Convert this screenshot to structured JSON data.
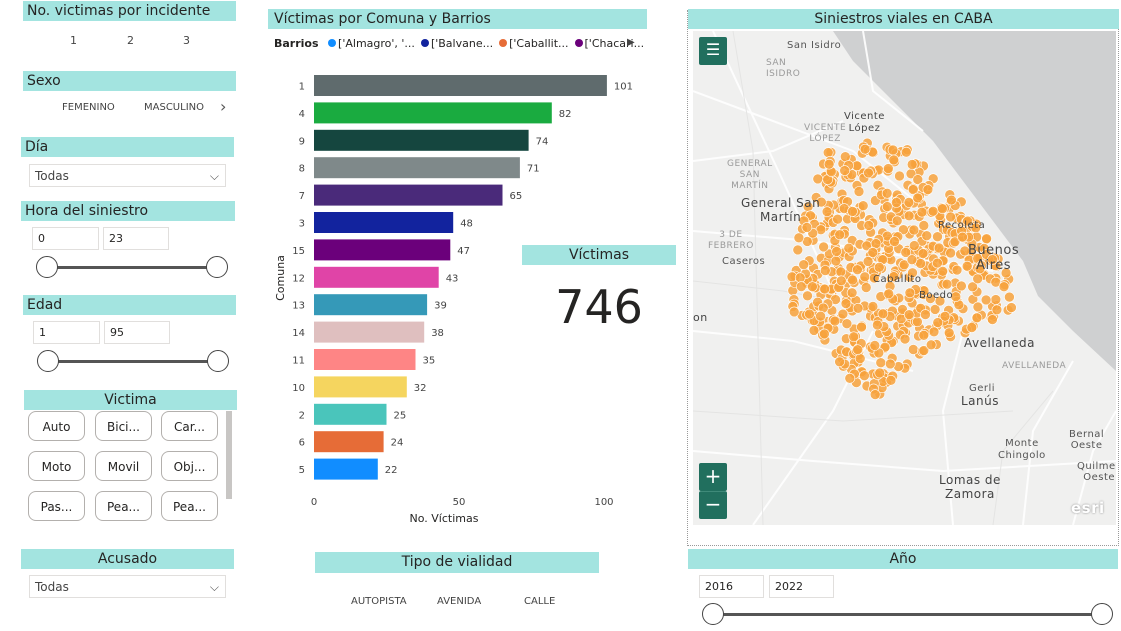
{
  "victims_per_incident": {
    "title": "No. victimas por incidente",
    "options": [
      "1",
      "2",
      "3"
    ]
  },
  "sexo": {
    "title": "Sexo",
    "options": [
      "FEMENINO",
      "MASCULINO"
    ]
  },
  "dia": {
    "title": "Día",
    "value": "Todas"
  },
  "hora": {
    "title": "Hora del siniestro",
    "min": "0",
    "max": "23"
  },
  "edad": {
    "title": "Edad",
    "min": "1",
    "max": "95"
  },
  "victima": {
    "title": "Victima",
    "buttons": [
      "Auto",
      "Bici...",
      "Car...",
      "Moto",
      "Movil",
      "Obj...",
      "Pas...",
      "Pea...",
      "Pea..."
    ]
  },
  "acusado": {
    "title": "Acusado",
    "value": "Todas"
  },
  "tipo_vialidad": {
    "title": "Tipo de vialidad",
    "options": [
      "AUTOPISTA",
      "AVENIDA",
      "CALLE"
    ]
  },
  "kpi": {
    "title": "Víctimas",
    "value": "746"
  },
  "map": {
    "title": "Siniestros viales en CABA",
    "labels": {
      "san_isidro": "San Isidro",
      "san_isidro_caps": "SAN\nISIDRO",
      "vicente_lopez": "Vicente\nLópez",
      "vicente_lopez_caps": "VICENTE\nLÓPEZ",
      "general_san_martin_caps": "GENERAL\nSAN\nMARTÍN",
      "general_san_martin": "General San\nMartín",
      "tres_de_febrero": "3 DE\nFEBRERO",
      "caseros": "Caseros",
      "recoleta": "Recoleta",
      "buenos_aires": "Buenos\nAires",
      "caballito": "Caballito",
      "boedo": "Boedo",
      "avellaneda": "Avellaneda",
      "avellaneda_caps": "AVELLANEDA",
      "gerli": "Gerli",
      "lanus": "Lanús",
      "monte_chingolo": "Monte\nChingolo",
      "bernal_oeste": "Bernal\nOeste",
      "quilmes_oeste": "Quilmes\nOeste",
      "lomas_de_zamora": "Lomas de\nZamora",
      "on": "on",
      "esri": "esri"
    }
  },
  "anio": {
    "title": "Año",
    "min": "2016",
    "max": "2022"
  },
  "chart_data": {
    "type": "bar",
    "orientation": "horizontal",
    "title": "Víctimas por Comuna y Barrios",
    "legend": {
      "title": "Barrios",
      "placement": "top",
      "entries": [
        {
          "name": "['Almagro', '...",
          "color": "#118dff"
        },
        {
          "name": "['Balvane...",
          "color": "#12239e"
        },
        {
          "name": "['Caballit...",
          "color": "#e66c37"
        },
        {
          "name": "['Chacari...",
          "color": "#6b007b"
        }
      ]
    },
    "xlabel": "No. Víctimas",
    "ylabel": "Comuna",
    "xlim": [
      0,
      100
    ],
    "xticks": [
      0,
      50,
      100
    ],
    "categories": [
      "1",
      "4",
      "9",
      "8",
      "7",
      "3",
      "15",
      "12",
      "13",
      "14",
      "11",
      "10",
      "2",
      "6",
      "5"
    ],
    "values": [
      101,
      82,
      74,
      71,
      65,
      48,
      47,
      43,
      39,
      38,
      35,
      32,
      25,
      24,
      22
    ],
    "colors": [
      "#5f6b6d",
      "#1aab40",
      "#15463f",
      "#7f898a",
      "#4a2a7a",
      "#12239e",
      "#6b007b",
      "#e044a7",
      "#3599b8",
      "#dfbfbf",
      "#fe8585",
      "#f5d55f",
      "#4ac5bb",
      "#e66c37",
      "#118dff"
    ]
  },
  "colors": {
    "header_bg": "#a3e4e0",
    "map_dot": "#f7a23c",
    "map_btn": "#216f5e"
  }
}
